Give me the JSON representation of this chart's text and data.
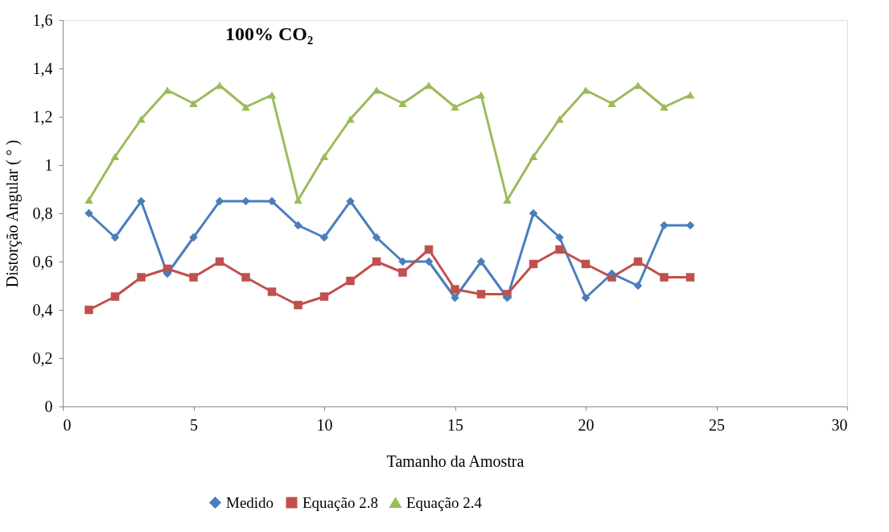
{
  "chart_data": {
    "type": "line",
    "title": "100% CO₂",
    "xlabel": "Tamanho da Amostra",
    "ylabel": "Distorção Angular  ( ° )",
    "x": [
      1,
      2,
      3,
      4,
      5,
      6,
      7,
      8,
      9,
      10,
      11,
      12,
      13,
      14,
      15,
      16,
      17,
      18,
      19,
      20,
      21,
      22,
      23,
      24
    ],
    "series": [
      {
        "name": "Medido",
        "color": "#4a7ebb",
        "marker": "diamond",
        "values": [
          0.8,
          0.7,
          0.85,
          0.55,
          0.7,
          0.85,
          0.85,
          0.85,
          0.75,
          0.7,
          0.85,
          0.7,
          0.6,
          0.6,
          0.45,
          0.6,
          0.45,
          0.8,
          0.7,
          0.45,
          0.55,
          0.5,
          0.75,
          0.75
        ]
      },
      {
        "name": "Equação 2.8",
        "color": "#c0504d",
        "marker": "square",
        "values": [
          0.4,
          0.455,
          0.535,
          0.57,
          0.535,
          0.6,
          0.535,
          0.475,
          0.42,
          0.455,
          0.52,
          0.6,
          0.555,
          0.65,
          0.485,
          0.465,
          0.465,
          0.59,
          0.65,
          0.59,
          0.535,
          0.6,
          0.535,
          0.535
        ]
      },
      {
        "name": "Equação 2.4",
        "color": "#9bbb59",
        "marker": "triangle",
        "values": [
          0.855,
          1.035,
          1.19,
          1.31,
          1.255,
          1.33,
          1.24,
          1.29,
          0.855,
          1.035,
          1.19,
          1.31,
          1.255,
          1.33,
          1.24,
          1.29,
          0.855,
          1.035,
          1.19,
          1.31,
          1.255,
          1.33,
          1.24,
          1.29
        ]
      }
    ],
    "xlim": [
      0,
      30
    ],
    "xticks": [
      0,
      5,
      10,
      15,
      20,
      25,
      30
    ],
    "ylim": [
      0,
      1.6
    ],
    "yticks": [
      0,
      {
        "value": 0.2,
        "label": "0,2"
      },
      {
        "value": 0.4,
        "label": "0,4"
      },
      {
        "value": 0.6,
        "label": "0,6"
      },
      {
        "value": 0.8,
        "label": "0,8"
      },
      1,
      {
        "value": 1.2,
        "label": "1,2"
      },
      {
        "value": 1.4,
        "label": "1,4"
      },
      {
        "value": 1.6,
        "label": "1,6"
      }
    ],
    "grid": false,
    "legend": "bottom",
    "line_style": "solid"
  }
}
